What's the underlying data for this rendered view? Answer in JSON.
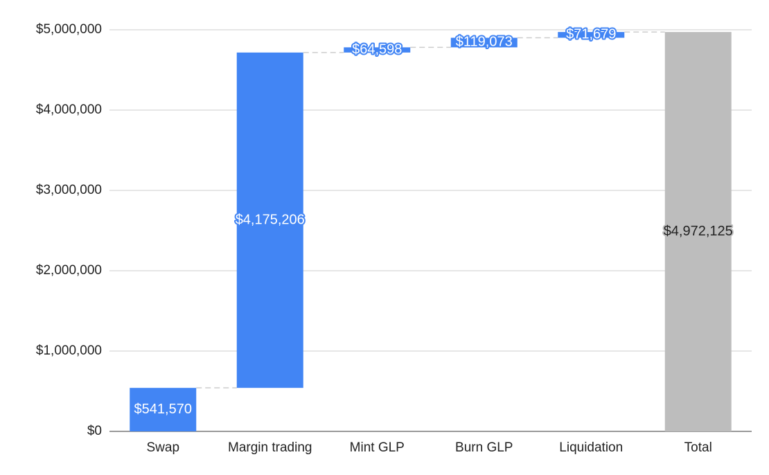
{
  "chart_data": {
    "type": "waterfall",
    "categories": [
      "Swap",
      "Margin trading",
      "Mint GLP",
      "Burn GLP",
      "Liquidation"
    ],
    "values": [
      541570,
      4175206,
      64598,
      119073,
      71679
    ],
    "value_labels": [
      "$541,570",
      "$4,175,206",
      "$64,598",
      "$119,073",
      "$71,679"
    ],
    "color": "#4285f4",
    "total": {
      "category": "Total",
      "value": 4972125,
      "value_label": "$4,972,125",
      "color": "#bdbdbd"
    },
    "ylim": [
      0,
      5000000
    ],
    "yticks": [
      {
        "value": 0,
        "label": "$0"
      },
      {
        "value": 1000000,
        "label": "$1,000,000"
      },
      {
        "value": 2000000,
        "label": "$2,000,000"
      },
      {
        "value": 3000000,
        "label": "$3,000,000"
      },
      {
        "value": 4000000,
        "label": "$4,000,000"
      },
      {
        "value": 5000000,
        "label": "$5,000,000"
      }
    ],
    "grid": true
  }
}
